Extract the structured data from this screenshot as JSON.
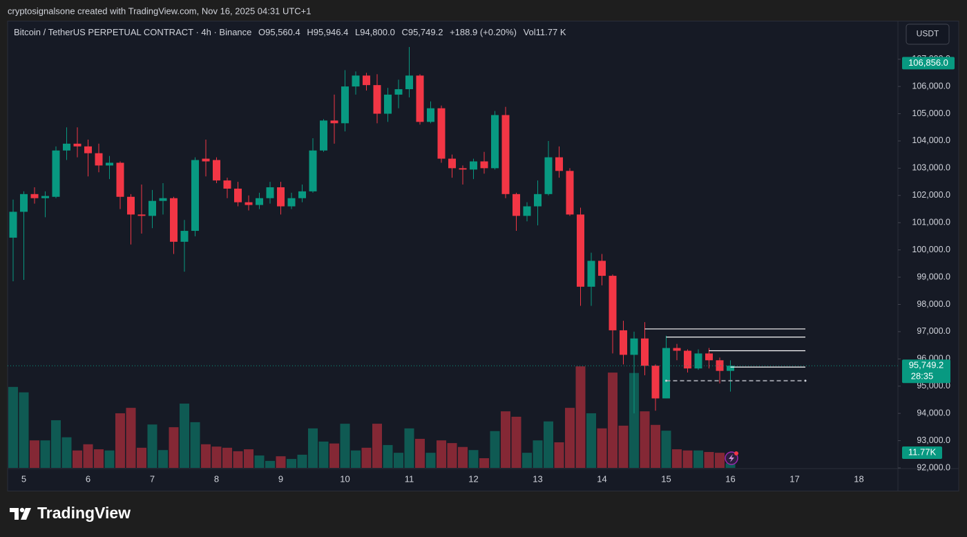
{
  "header": "cryptosignalsone created with TradingView.com, Nov 16, 2025 04:31 UTC+1",
  "brand": "TradingView",
  "chart_data": {
    "type": "candlestick",
    "currency_button": "USDT",
    "legend": {
      "symbol": "Bitcoin / TetherUS PERPETUAL CONTRACT · 4h · Binance",
      "items": [
        "O95,560.4",
        "H95,946.4",
        "L94,800.0",
        "C95,749.2",
        "+188.9 (+0.20%)",
        "Vol11.77 K"
      ]
    },
    "up_color": "#089981",
    "down_color": "#f23645",
    "categories": [
      null,
      "5",
      null,
      null,
      null,
      null,
      null,
      "6",
      null,
      null,
      null,
      null,
      null,
      "7",
      null,
      null,
      null,
      null,
      null,
      "8",
      null,
      null,
      null,
      null,
      null,
      "9",
      null,
      null,
      null,
      null,
      null,
      "10",
      null,
      null,
      null,
      null,
      null,
      "11",
      null,
      null,
      null,
      null,
      null,
      "12",
      null,
      null,
      null,
      null,
      null,
      "13",
      null,
      null,
      null,
      null,
      null,
      "14",
      null,
      null,
      null,
      null,
      null,
      "15",
      null,
      null,
      null,
      null,
      null,
      "16",
      null,
      null,
      null,
      null,
      null,
      "17",
      null,
      null,
      null,
      null,
      null,
      "18"
    ],
    "open": [
      100450,
      101400,
      102050,
      101900,
      101950,
      103650,
      103900,
      103800,
      103550,
      103100,
      103200,
      101950,
      101300,
      101250,
      101800,
      101900,
      100300,
      100700,
      103350,
      103300,
      102550,
      102250,
      101750,
      101650,
      101900,
      102300,
      101600,
      101900,
      102150,
      103650,
      104750,
      104650,
      106000,
      106400,
      106050,
      105000,
      105700,
      105900,
      106400,
      104700,
      105200,
      103350,
      103000,
      102950,
      103250,
      103000,
      104950,
      102050,
      101250,
      101600,
      102050,
      103400,
      102900,
      101300,
      98650,
      99600,
      99050,
      97050,
      96150,
      96750,
      95750,
      94550,
      96400,
      96300,
      95650,
      96200,
      95950,
      95560.4,
      null,
      null,
      null,
      null,
      null,
      null,
      null,
      null,
      null,
      null,
      null,
      null
    ],
    "high": [
      101850,
      102150,
      102300,
      102150,
      103800,
      104500,
      104500,
      104050,
      103900,
      103450,
      103250,
      102050,
      102400,
      102200,
      102450,
      101950,
      101100,
      103400,
      104050,
      103400,
      102650,
      102500,
      102000,
      102100,
      102500,
      102500,
      102100,
      102400,
      104100,
      104800,
      105700,
      106600,
      106550,
      106500,
      106450,
      105950,
      106250,
      107450,
      106450,
      105450,
      105300,
      103500,
      103100,
      103350,
      103600,
      105100,
      105250,
      102100,
      101750,
      102550,
      104000,
      103800,
      103000,
      101550,
      99900,
      99850,
      99100,
      97400,
      97000,
      97350,
      95800,
      96850,
      96550,
      96350,
      96350,
      96400,
      96050,
      95946.4,
      null,
      null,
      null,
      null,
      null,
      null,
      null,
      null,
      null,
      null,
      null,
      null
    ],
    "low": [
      98850,
      98900,
      101700,
      101200,
      101900,
      103300,
      103400,
      102700,
      102850,
      102600,
      101500,
      100200,
      100600,
      100800,
      101300,
      99850,
      99200,
      100500,
      102700,
      102450,
      101900,
      101600,
      101450,
      101500,
      101700,
      101300,
      101500,
      101750,
      102100,
      103600,
      103900,
      104350,
      105700,
      105850,
      104650,
      104700,
      105200,
      105600,
      104600,
      104650,
      103200,
      102650,
      102400,
      102600,
      102800,
      102950,
      101900,
      100700,
      101050,
      100900,
      102000,
      102650,
      101250,
      97950,
      97950,
      98700,
      96200,
      95800,
      94000,
      95400,
      94100,
      94550,
      95950,
      95500,
      95600,
      95650,
      95100,
      94800,
      null,
      null,
      null,
      null,
      null,
      null,
      null,
      null,
      null,
      null,
      null,
      null
    ],
    "close": [
      101400,
      102050,
      101900,
      101980,
      103650,
      103900,
      103800,
      103550,
      103100,
      103200,
      101950,
      101300,
      101250,
      101800,
      101900,
      100300,
      100700,
      103300,
      103250,
      102550,
      102250,
      101750,
      101650,
      101900,
      102300,
      101600,
      101900,
      102150,
      103650,
      104750,
      104650,
      106000,
      106400,
      106050,
      105000,
      105700,
      105900,
      106400,
      104700,
      105200,
      103350,
      103000,
      102950,
      103250,
      103000,
      104950,
      102050,
      101250,
      101600,
      102050,
      103400,
      102900,
      101300,
      98650,
      99600,
      99050,
      97050,
      96150,
      96750,
      95750,
      94550,
      96400,
      96300,
      95650,
      96200,
      95950,
      95560,
      95749.2,
      null,
      null,
      null,
      null,
      null,
      null,
      null,
      null,
      null,
      null,
      null,
      null
    ],
    "volume": [
      209,
      195,
      71,
      71,
      123,
      79,
      45,
      61,
      48,
      45,
      141,
      155,
      52,
      112,
      46,
      105,
      166,
      118,
      61,
      55,
      52,
      43,
      48,
      32,
      18,
      30,
      23,
      34,
      102,
      68,
      63,
      114,
      45,
      52,
      114,
      59,
      39,
      102,
      75,
      39,
      71,
      64,
      54,
      46,
      25,
      95,
      146,
      132,
      39,
      71,
      120,
      66,
      155,
      262,
      141,
      102,
      246,
      109,
      245,
      146,
      111,
      96,
      48,
      45,
      45,
      41,
      39,
      11.77,
      null,
      null,
      null,
      null,
      null,
      null,
      null,
      null,
      null,
      null,
      null,
      null
    ],
    "volume_label": "11.77K",
    "ylim": [
      92000,
      108400
    ],
    "y2lim": [
      0,
      380
    ],
    "yticks": [
      {
        "value": 92000,
        "label": "92,000.0"
      },
      {
        "value": 93000,
        "label": "93,000.0"
      },
      {
        "value": 94000,
        "label": "94,000.0"
      },
      {
        "value": 95000,
        "label": "95,000.0"
      },
      {
        "value": 96000,
        "label": "96,000.0"
      },
      {
        "value": 97000,
        "label": "97,000.0"
      },
      {
        "value": 98000,
        "label": "98,000.0"
      },
      {
        "value": 99000,
        "label": "99,000.0"
      },
      {
        "value": 100000,
        "label": "100,000.0"
      },
      {
        "value": 101000,
        "label": "101,000.0"
      },
      {
        "value": 102000,
        "label": "102,000.0"
      },
      {
        "value": 103000,
        "label": "103,000.0"
      },
      {
        "value": 104000,
        "label": "104,000.0"
      },
      {
        "value": 105000,
        "label": "105,000.0"
      },
      {
        "value": 106000,
        "label": "106,000.0"
      },
      {
        "value": 107000,
        "label": "107,000.0"
      }
    ],
    "grid": false,
    "price_labels": [
      {
        "value": 106856,
        "label": "106,856.0"
      }
    ],
    "last_price_label": "95,749.2",
    "countdown": "28:35",
    "hlines": [
      {
        "value": 97100,
        "from": 59,
        "to": 74
      },
      {
        "value": 96800,
        "from": 61,
        "to": 74
      },
      {
        "value": 96300,
        "from": 65,
        "to": 74
      },
      {
        "value": 95700,
        "from": 67,
        "to": 74
      },
      {
        "value": 95200,
        "from": 61,
        "to": 74,
        "dashed": true
      }
    ]
  }
}
